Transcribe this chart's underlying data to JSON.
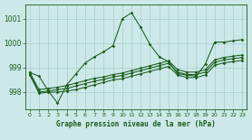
{
  "title": "Graphe pression niveau de la mer (hPa)",
  "background_color": "#cce8e8",
  "plot_bg_color": "#cce8e8",
  "line_color": "#1a5c1a",
  "grid_color": "#aacccc",
  "xlim": [
    -0.5,
    23.5
  ],
  "ylim": [
    997.3,
    1001.6
  ],
  "yticks": [
    998,
    999,
    1000,
    1001
  ],
  "xticks": [
    0,
    1,
    2,
    3,
    4,
    5,
    6,
    7,
    8,
    9,
    10,
    11,
    12,
    13,
    14,
    15,
    16,
    17,
    18,
    19,
    20,
    21,
    22,
    23
  ],
  "series1": [
    998.8,
    998.65,
    998.05,
    997.55,
    998.3,
    998.75,
    999.2,
    999.45,
    999.65,
    999.9,
    1001.0,
    1001.25,
    1000.65,
    999.95,
    999.45,
    999.25,
    998.75,
    998.7,
    998.65,
    999.15,
    1000.05,
    1000.05,
    1000.1,
    1000.15
  ],
  "series2": [
    998.7,
    997.95,
    998.0,
    998.0,
    998.05,
    998.1,
    998.2,
    998.3,
    998.4,
    998.5,
    998.55,
    998.65,
    998.75,
    998.85,
    998.95,
    999.05,
    998.7,
    998.6,
    998.6,
    998.7,
    999.1,
    999.2,
    999.25,
    999.3
  ],
  "series3": [
    998.75,
    998.0,
    998.05,
    998.1,
    998.15,
    998.25,
    998.35,
    998.45,
    998.52,
    998.62,
    998.68,
    998.78,
    998.88,
    998.98,
    999.08,
    999.18,
    998.82,
    998.72,
    998.72,
    998.82,
    999.22,
    999.32,
    999.37,
    999.42
  ],
  "series4": [
    998.8,
    998.1,
    998.15,
    998.2,
    998.27,
    998.37,
    998.47,
    998.57,
    998.62,
    998.72,
    998.78,
    998.88,
    998.98,
    999.08,
    999.18,
    999.28,
    998.92,
    998.82,
    998.82,
    998.92,
    999.32,
    999.42,
    999.47,
    999.52
  ]
}
